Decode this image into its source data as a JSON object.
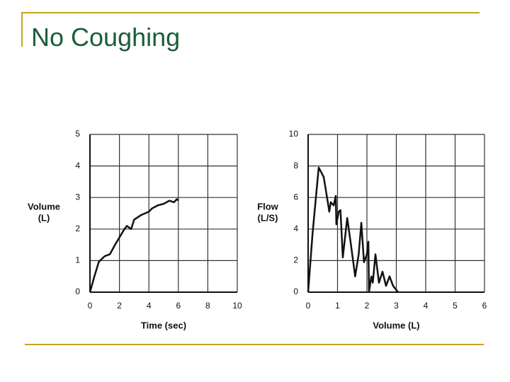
{
  "title": "No Coughing",
  "chart_data": [
    {
      "type": "line",
      "xlabel": "Time (sec)",
      "ylabel": [
        "Volume",
        "(L)"
      ],
      "x": [
        0,
        0.3,
        0.6,
        1.0,
        1.35,
        1.7,
        2.3,
        2.5,
        2.8,
        3.0,
        3.5,
        4.0,
        4.2,
        4.6,
        5.0,
        5.4,
        5.7,
        5.9,
        6.0
      ],
      "values": [
        0,
        0.5,
        0.96,
        1.14,
        1.2,
        1.5,
        1.97,
        2.1,
        2.0,
        2.3,
        2.45,
        2.55,
        2.65,
        2.75,
        2.8,
        2.9,
        2.85,
        2.95,
        2.9
      ],
      "color": "#111111",
      "xlim": [
        0,
        10
      ],
      "xticks": [
        0,
        2,
        4,
        6,
        8,
        10
      ],
      "ylim": [
        0,
        5
      ],
      "yticks": [
        0,
        1,
        2,
        3,
        4,
        5
      ],
      "grid": true
    },
    {
      "type": "line",
      "xlabel": "Volume (L)",
      "ylabel": [
        "Flow",
        "(L/S)"
      ],
      "x": [
        0,
        0.15,
        0.36,
        0.53,
        0.67,
        0.72,
        0.77,
        0.87,
        0.94,
        0.96,
        1.04,
        1.1,
        1.18,
        1.33,
        1.45,
        1.6,
        1.72,
        1.81,
        1.9,
        2.0,
        2.05,
        2.07,
        2.15,
        2.2,
        2.29,
        2.41,
        2.53,
        2.65,
        2.77,
        2.89,
        3.06
      ],
      "values": [
        0,
        3.7,
        7.9,
        7.3,
        5.7,
        5.1,
        5.7,
        5.5,
        6.1,
        4.3,
        5.1,
        5.2,
        2.2,
        4.7,
        3.1,
        1.0,
        2.4,
        4.4,
        1.9,
        2.4,
        3.2,
        0,
        1.0,
        0.6,
        2.4,
        0.6,
        1.3,
        0.4,
        1.0,
        0.4,
        0
      ],
      "color": "#111111",
      "xlim": [
        0,
        6
      ],
      "xticks": [
        0,
        1,
        2,
        3,
        4,
        5,
        6
      ],
      "ylim": [
        0,
        10
      ],
      "yticks": [
        0,
        2,
        4,
        6,
        8,
        10
      ],
      "grid": true
    }
  ]
}
